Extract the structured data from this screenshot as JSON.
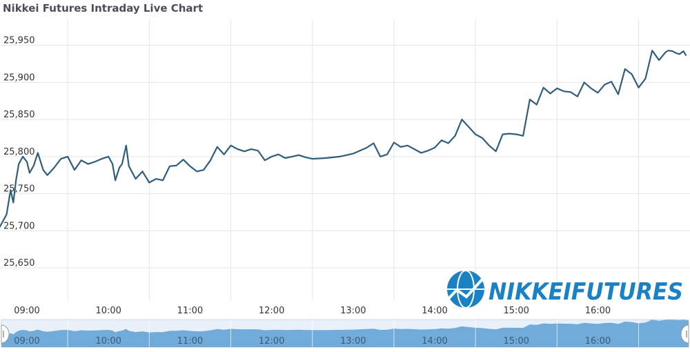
{
  "page": {
    "title": "Nikkei Futures Intraday Live Chart"
  },
  "brand": {
    "text": "NIKKEIFUTURES"
  },
  "colors": {
    "line": "#2f5d7c",
    "grid": "#e6e6e6",
    "navigator_fill": "#5b9fd3",
    "navigator_bg": "#e8f1fa",
    "brand": "#1a82c4"
  },
  "chart_data": {
    "type": "line",
    "title": "Nikkei Futures Intraday Live Chart",
    "xlabel": "",
    "ylabel": "",
    "ylim": [
      25625,
      25985
    ],
    "y_ticks": [
      "25,650",
      "25,700",
      "25,750",
      "25,800",
      "25,850",
      "25,900",
      "25,950"
    ],
    "y_tick_values": [
      25650,
      25700,
      25750,
      25800,
      25850,
      25900,
      25950
    ],
    "x_ticks": [
      "09:00",
      "10:00",
      "11:00",
      "12:00",
      "13:00",
      "14:00",
      "15:00",
      "16:00"
    ],
    "x_tick_hours": [
      9,
      10,
      11,
      12,
      13,
      14,
      15,
      16
    ],
    "xlim_hours": [
      8.67,
      17.13
    ],
    "grid": true,
    "legend": "none",
    "series": [
      {
        "x": [
          "08:40",
          "08:45",
          "08:48",
          "08:50",
          "08:52",
          "08:54",
          "08:57",
          "09:00",
          "09:02",
          "09:05",
          "09:08",
          "09:12",
          "09:15",
          "09:20",
          "09:25",
          "09:30",
          "09:35",
          "09:40",
          "09:45",
          "09:50",
          "09:55",
          "10:00",
          "10:03",
          "10:05",
          "10:08",
          "10:10",
          "10:13",
          "10:15",
          "10:20",
          "10:25",
          "10:30",
          "10:35",
          "10:40",
          "10:45",
          "10:50",
          "10:55",
          "11:00",
          "11:05",
          "11:10",
          "11:15",
          "11:20",
          "11:25",
          "11:30",
          "11:35",
          "11:40",
          "11:45",
          "11:50",
          "11:55",
          "12:00",
          "12:05",
          "12:10",
          "12:15",
          "12:20",
          "12:25",
          "12:30",
          "12:40",
          "12:50",
          "13:00",
          "13:10",
          "13:15",
          "13:20",
          "13:25",
          "13:30",
          "13:35",
          "13:40",
          "13:45",
          "13:50",
          "13:55",
          "14:00",
          "14:05",
          "14:10",
          "14:15",
          "14:20",
          "14:25",
          "14:30",
          "14:35",
          "14:40",
          "14:45",
          "14:50",
          "14:55",
          "15:00",
          "15:05",
          "15:10",
          "15:15",
          "15:20",
          "15:25",
          "15:30",
          "15:35",
          "15:40",
          "15:45",
          "15:50",
          "15:55",
          "16:00",
          "16:05",
          "16:10",
          "16:15",
          "16:20",
          "16:25",
          "16:30",
          "16:35",
          "16:40",
          "16:45",
          "16:50",
          "16:52",
          "16:55",
          "16:57",
          "17:00",
          "17:03",
          "17:05"
        ],
        "y": [
          25705,
          25722,
          25755,
          25738,
          25768,
          25790,
          25800,
          25793,
          25778,
          25788,
          25805,
          25782,
          25775,
          25785,
          25797,
          25800,
          25782,
          25795,
          25790,
          25793,
          25797,
          25800,
          25790,
          25768,
          25785,
          25790,
          25815,
          25787,
          25770,
          25780,
          25765,
          25770,
          25768,
          25787,
          25788,
          25796,
          25787,
          25780,
          25782,
          25795,
          25813,
          25803,
          25815,
          25810,
          25807,
          25810,
          25808,
          25795,
          25800,
          25803,
          25798,
          25800,
          25802,
          25799,
          25797,
          25798,
          25800,
          25804,
          25812,
          25818,
          25800,
          25803,
          25819,
          25813,
          25815,
          25810,
          25805,
          25808,
          25812,
          25822,
          25818,
          25828,
          25850,
          25840,
          25830,
          25825,
          25815,
          25807,
          25830,
          25831,
          25830,
          25828,
          25877,
          25870,
          25893,
          25885,
          25892,
          25888,
          25887,
          25881,
          25900,
          25892,
          25886,
          25897,
          25901,
          25884,
          25918,
          25911,
          25893,
          25905,
          25943,
          25930,
          25941,
          25943,
          25942,
          25940,
          25938,
          25942,
          25936
        ]
      }
    ]
  }
}
